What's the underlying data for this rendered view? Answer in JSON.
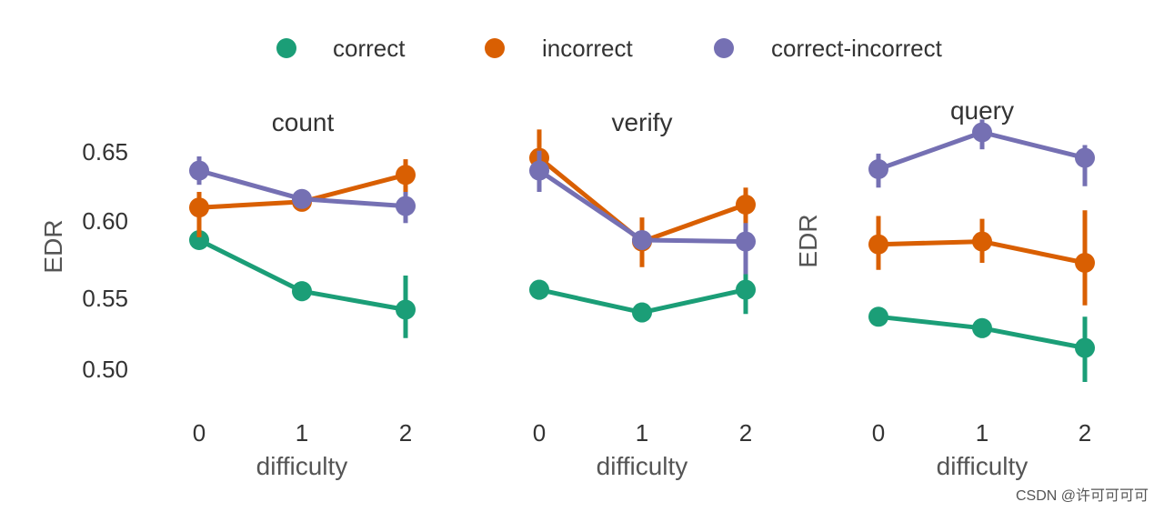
{
  "legend": {
    "entries": [
      {
        "label": "correct",
        "color": "#1b9e77"
      },
      {
        "label": "incorrect",
        "color": "#d95f02"
      },
      {
        "label": "correct-incorrect",
        "color": "#7570b3"
      }
    ]
  },
  "watermark": "CSDN @许可可可可",
  "chart_data": [
    {
      "type": "line",
      "title": "count",
      "xlabel": "difficulty",
      "ylabel": "EDR",
      "categories": [
        "0",
        "1",
        "2"
      ],
      "yticks": [
        0.5,
        0.55,
        0.6,
        0.65
      ],
      "ytick_labels": [
        "0.50",
        "0.55",
        "0.60",
        "0.65"
      ],
      "ylim": [
        0.47,
        0.695
      ],
      "series": [
        {
          "name": "correct",
          "color": "#1b9e77",
          "values": [
            0.591,
            0.555,
            0.542
          ],
          "err_low": [
            0.588,
            0.548,
            0.522
          ],
          "err_high": [
            0.595,
            0.562,
            0.566
          ]
        },
        {
          "name": "incorrect",
          "color": "#d95f02",
          "values": [
            0.614,
            0.618,
            0.637
          ],
          "err_low": [
            0.593,
            0.612,
            0.622
          ],
          "err_high": [
            0.625,
            0.624,
            0.648
          ]
        },
        {
          "name": "correct-incorrect",
          "color": "#7570b3",
          "values": [
            0.64,
            0.62,
            0.615
          ],
          "err_low": [
            0.63,
            0.615,
            0.603
          ],
          "err_high": [
            0.65,
            0.625,
            0.625
          ]
        }
      ]
    },
    {
      "type": "line",
      "title": "verify",
      "xlabel": "difficulty",
      "ylabel": "",
      "categories": [
        "0",
        "1",
        "2"
      ],
      "yticks": [],
      "ytick_labels": [],
      "ylim": [
        0.47,
        0.695
      ],
      "series": [
        {
          "name": "correct",
          "color": "#1b9e77",
          "values": [
            0.556,
            0.54,
            0.556
          ],
          "err_low": [
            0.549,
            0.533,
            0.539
          ],
          "err_high": [
            0.563,
            0.547,
            0.568
          ]
        },
        {
          "name": "incorrect",
          "color": "#d95f02",
          "values": [
            0.649,
            0.59,
            0.616
          ],
          "err_low": [
            0.633,
            0.572,
            0.601
          ],
          "err_high": [
            0.669,
            0.607,
            0.628
          ]
        },
        {
          "name": "correct-incorrect",
          "color": "#7570b3",
          "values": [
            0.64,
            0.591,
            0.59
          ],
          "err_low": [
            0.625,
            0.585,
            0.567
          ],
          "err_high": [
            0.654,
            0.596,
            0.603
          ]
        }
      ]
    },
    {
      "type": "line",
      "title": "query",
      "xlabel": "difficulty",
      "ylabel": "EDR",
      "categories": [
        "0",
        "1",
        "2"
      ],
      "yticks": [],
      "ytick_labels": [],
      "ylim": [
        0.47,
        0.695
      ],
      "series": [
        {
          "name": "correct",
          "color": "#1b9e77",
          "values": [
            0.537,
            0.529,
            0.515
          ],
          "err_low": [
            0.533,
            0.522,
            0.491
          ],
          "err_high": [
            0.541,
            0.535,
            0.537
          ]
        },
        {
          "name": "incorrect",
          "color": "#d95f02",
          "values": [
            0.588,
            0.59,
            0.575
          ],
          "err_low": [
            0.57,
            0.575,
            0.545
          ],
          "err_high": [
            0.608,
            0.606,
            0.612
          ]
        },
        {
          "name": "correct-incorrect",
          "color": "#7570b3",
          "values": [
            0.641,
            0.667,
            0.649
          ],
          "err_low": [
            0.628,
            0.655,
            0.629
          ],
          "err_high": [
            0.652,
            0.676,
            0.658
          ]
        }
      ]
    }
  ]
}
